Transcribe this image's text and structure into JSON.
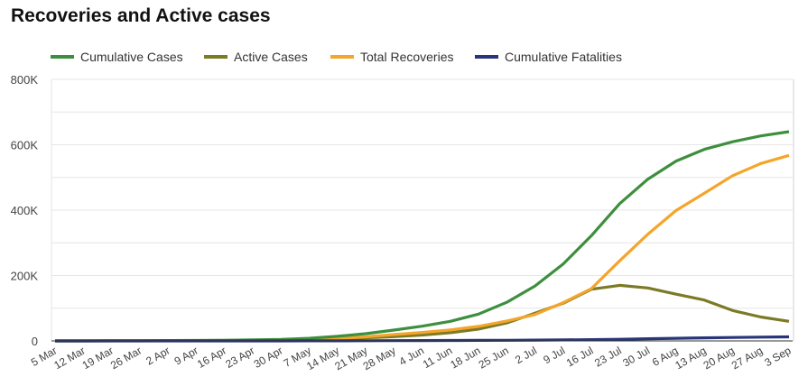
{
  "chart_data": {
    "type": "line",
    "title": "Recoveries and Active cases",
    "xlabel": "",
    "ylabel": "",
    "ylim": [
      0,
      800000
    ],
    "y_ticks": [
      {
        "v": 0,
        "label": "0"
      },
      {
        "v": 200000,
        "label": "200K"
      },
      {
        "v": 400000,
        "label": "400K"
      },
      {
        "v": 600000,
        "label": "600K"
      },
      {
        "v": 800000,
        "label": "800K"
      }
    ],
    "grid": true,
    "legend_placement": "top-left",
    "categories": [
      "5 Mar",
      "12 Mar",
      "19 Mar",
      "26 Mar",
      "2 Apr",
      "9 Apr",
      "16 Apr",
      "23 Apr",
      "30 Apr",
      "7 May",
      "14 May",
      "21 May",
      "28 May",
      "4 Jun",
      "11 Jun",
      "18 Jun",
      "25 Jun",
      "2 Jul",
      "9 Jul",
      "16 Jul",
      "23 Jul",
      "30 Jul",
      "6 Aug",
      "13 Aug",
      "20 Aug",
      "27 Aug",
      "3 Sep"
    ],
    "series": [
      {
        "name": "Cumulative Cases",
        "color": "#3d8f3d",
        "values": [
          0,
          0,
          200,
          500,
          1000,
          1500,
          2000,
          3000,
          4500,
          8000,
          14000,
          22000,
          33000,
          45000,
          60000,
          82000,
          118000,
          168000,
          235000,
          322000,
          420000,
          495000,
          550000,
          586000,
          609000,
          627000,
          640000
        ]
      },
      {
        "name": "Active Cases",
        "color": "#7b7a25",
        "values": [
          0,
          0,
          200,
          400,
          800,
          1000,
          1300,
          1800,
          2500,
          3500,
          6000,
          9000,
          13000,
          18000,
          25000,
          36000,
          55000,
          85000,
          115000,
          158000,
          170000,
          162000,
          143000,
          125000,
          93000,
          73000,
          60000
        ]
      },
      {
        "name": "Total Recoveries",
        "color": "#f4a52a",
        "values": [
          0,
          0,
          0,
          100,
          200,
          500,
          700,
          1100,
          1900,
          4300,
          7700,
          12500,
          19200,
          26000,
          33700,
          44400,
          61000,
          80500,
          117000,
          160000,
          245000,
          326500,
          399000,
          451500,
          505500,
          542500,
          567500
        ]
      },
      {
        "name": "Cumulative Fatalities",
        "color": "#27367a",
        "values": [
          0,
          0,
          0,
          0,
          0,
          0,
          0,
          100,
          100,
          200,
          300,
          500,
          800,
          1000,
          1300,
          1600,
          2000,
          2500,
          3000,
          4000,
          5000,
          6500,
          8000,
          9500,
          10500,
          11500,
          12500
        ]
      }
    ]
  }
}
